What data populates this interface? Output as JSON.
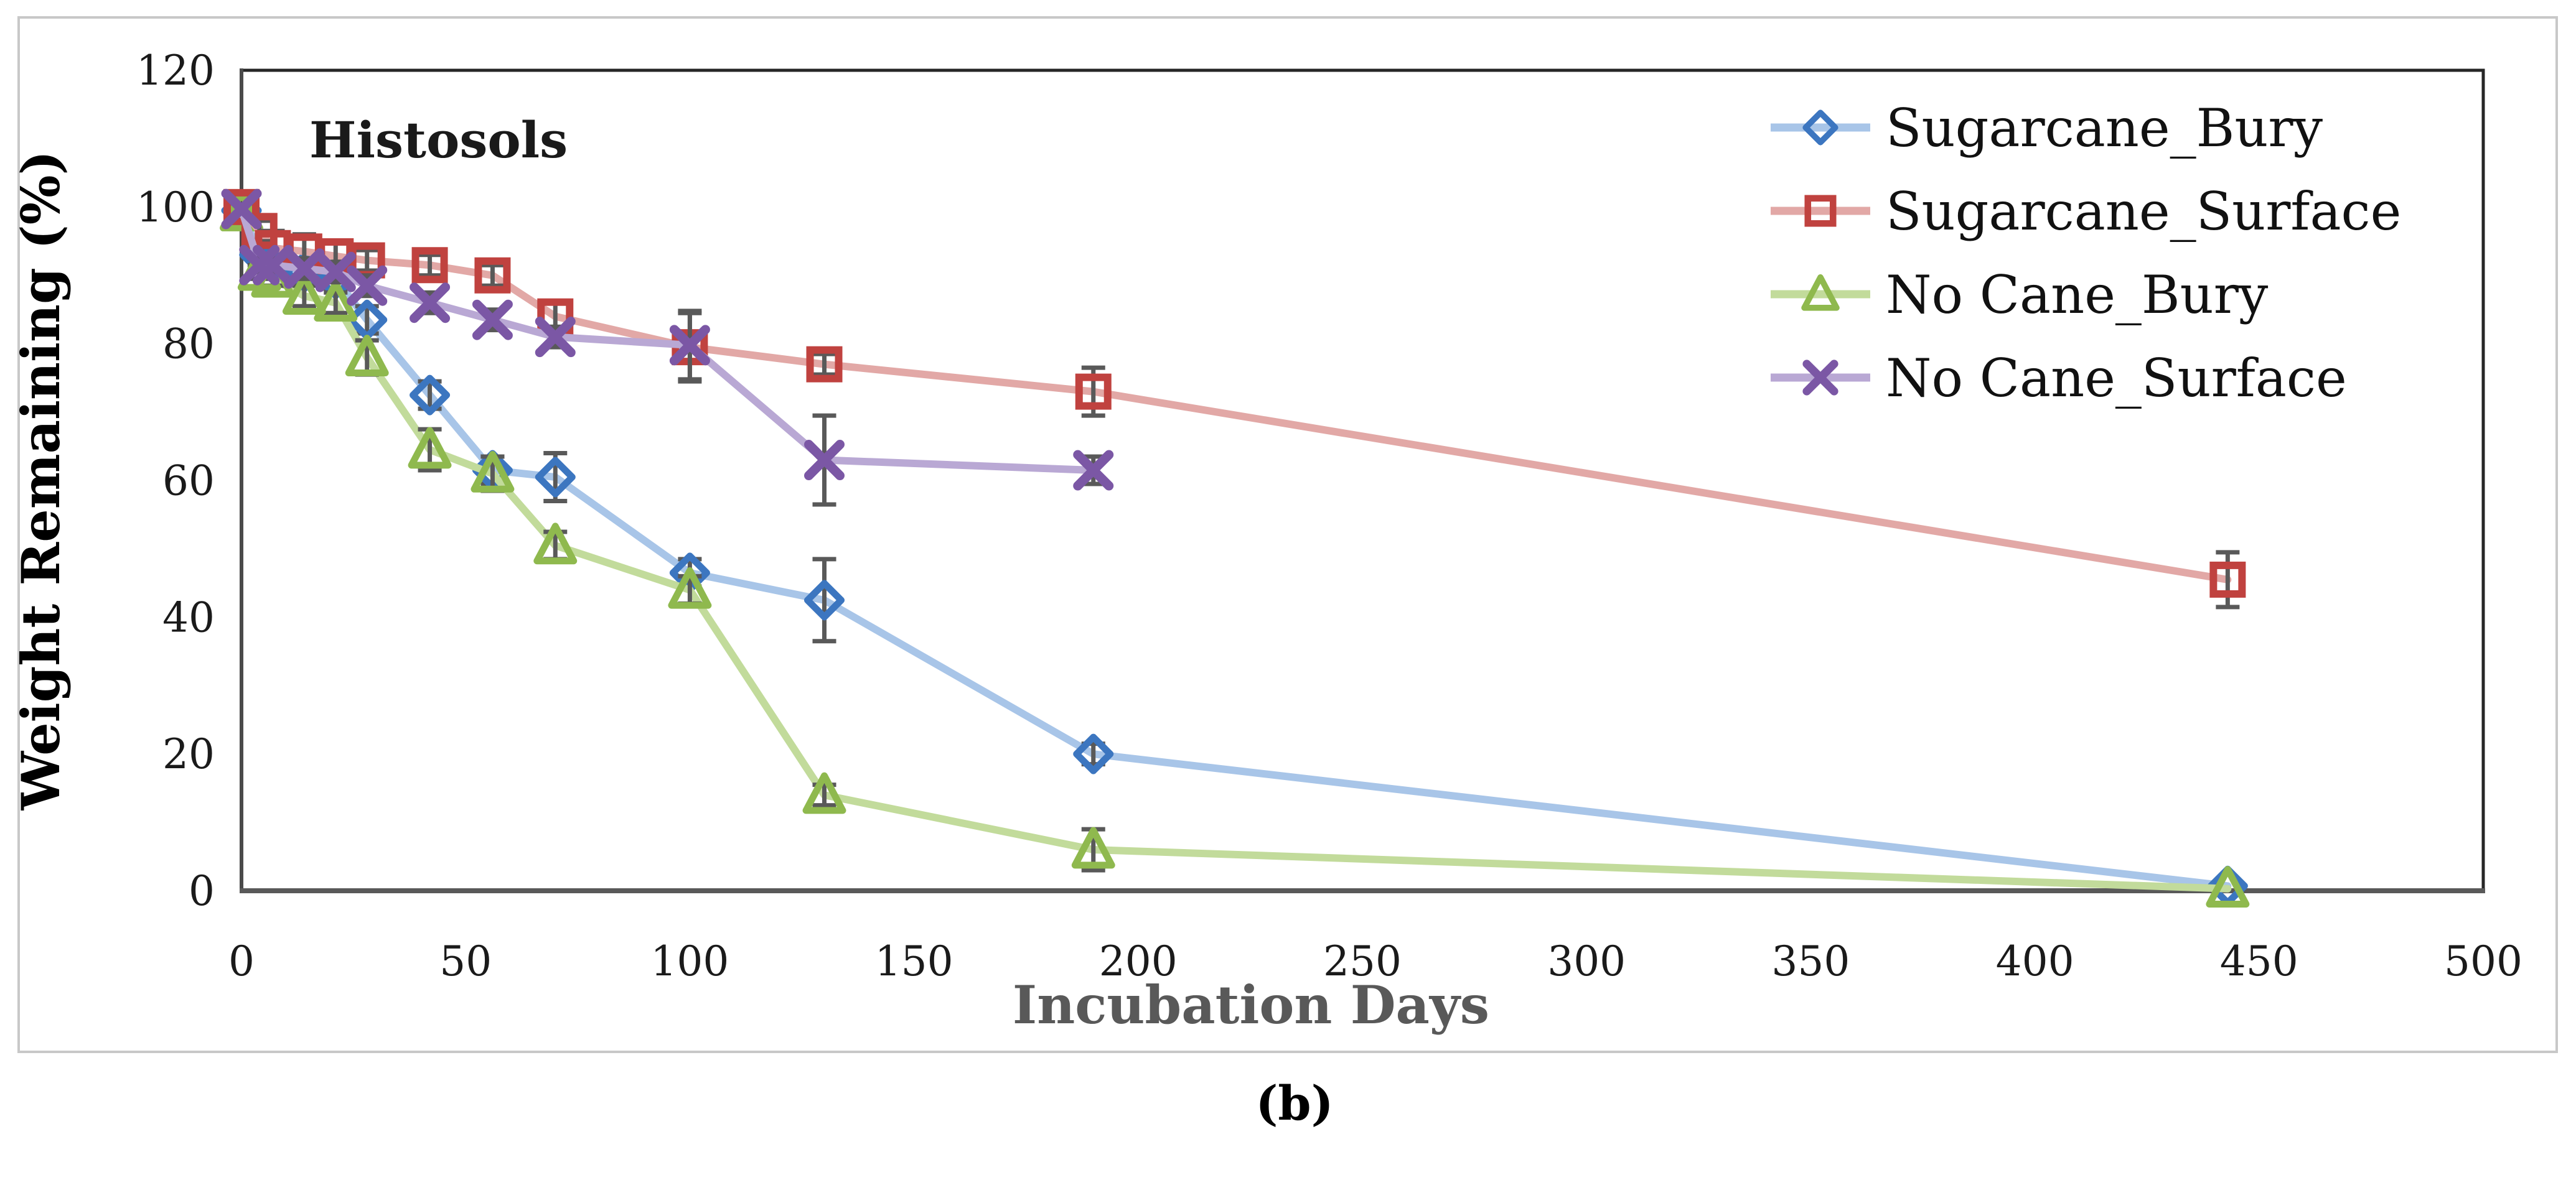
{
  "figure": {
    "panel_label": "(b)",
    "inner_title": "Histosols",
    "border_color": "#c8c8c8",
    "background": "#ffffff"
  },
  "chart_data": {
    "type": "line",
    "title": "Histosols",
    "xlabel": "Incubation Days",
    "ylabel": "Weight Remaining (%)",
    "xlim": [
      0,
      500
    ],
    "ylim": [
      0,
      120
    ],
    "x_ticks": [
      0,
      50,
      100,
      150,
      200,
      250,
      300,
      350,
      400,
      450,
      500
    ],
    "y_ticks": [
      0,
      20,
      40,
      60,
      80,
      100,
      120
    ],
    "grid": false,
    "legend_position": "top-right-inside",
    "axis_color": "#262626",
    "bottom_axis_color": "#595959",
    "xlabel_color": "#595959",
    "error_bar_color": "#595959",
    "series": [
      {
        "name": "Sugarcane_Bury",
        "marker": "diamond",
        "color": "#3c76c0",
        "line_color": "#a8c5e8",
        "x": [
          0,
          4,
          7,
          14,
          21,
          28,
          42,
          56,
          70,
          100,
          130,
          190,
          443
        ],
        "y": [
          99.5,
          93,
          92,
          90.5,
          89.5,
          83.5,
          72.5,
          61.5,
          60.5,
          46.5,
          42.5,
          20,
          0.7
        ],
        "err": [
          0.5,
          1,
          1,
          1.5,
          1.5,
          2,
          2,
          2,
          3.5,
          2,
          6,
          1.5,
          0.5
        ]
      },
      {
        "name": "Sugarcane_Surface",
        "marker": "square",
        "color": "#c0423f",
        "line_color": "#e2a8a6",
        "x": [
          0,
          4,
          7,
          14,
          21,
          28,
          42,
          56,
          70,
          100,
          130,
          190,
          443
        ],
        "y": [
          100,
          96.5,
          94,
          93.5,
          92.8,
          92.2,
          91.5,
          90,
          84,
          79.5,
          77,
          73,
          45.5
        ],
        "err": [
          0.5,
          1.5,
          2.5,
          2.5,
          2,
          1.5,
          1.5,
          1.5,
          2,
          5,
          1.5,
          3.5,
          4
        ]
      },
      {
        "name": "No Cane_Bury",
        "marker": "triangle",
        "color": "#8fb94e",
        "line_color": "#c2db9b",
        "x": [
          0,
          4,
          7,
          14,
          21,
          28,
          42,
          56,
          70,
          100,
          130,
          190,
          443
        ],
        "y": [
          99.2,
          90.5,
          89.5,
          87,
          86,
          78,
          64.5,
          61,
          50.5,
          44,
          14,
          6,
          0.3
        ],
        "err": [
          0.5,
          1,
          1,
          1.5,
          1.5,
          2.5,
          3,
          2.5,
          2,
          2,
          1.5,
          3,
          0.5
        ]
      },
      {
        "name": "No Cane_Surface",
        "marker": "x",
        "color": "#7b57a5",
        "line_color": "#b9a8d4",
        "x": [
          0,
          4,
          7,
          14,
          21,
          28,
          42,
          56,
          70,
          100,
          130,
          190
        ],
        "y": [
          99.7,
          91.5,
          91.5,
          91,
          90.5,
          88.5,
          86,
          83.5,
          81,
          79.8,
          63,
          61.5
        ],
        "err": [
          0.5,
          1,
          1,
          1.5,
          1.5,
          1.5,
          1.5,
          1.5,
          1.5,
          5,
          6.5,
          2
        ]
      }
    ]
  }
}
